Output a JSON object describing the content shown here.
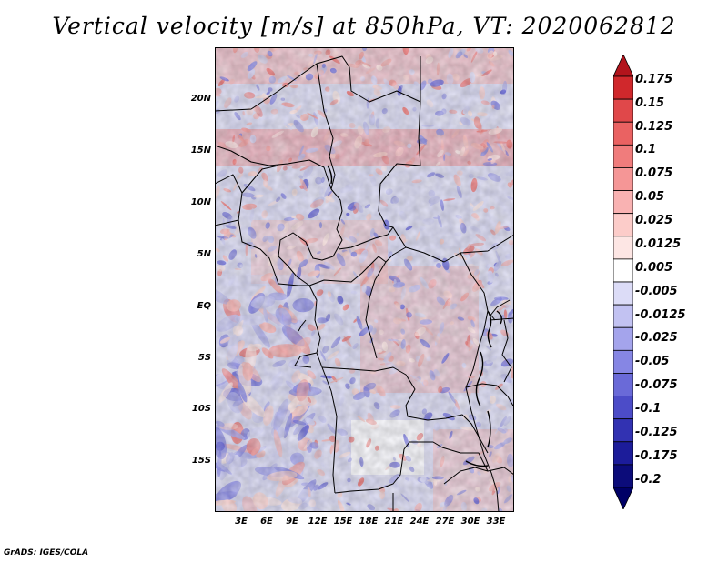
{
  "title": "Vertical velocity [m/s] at 850hPa, VT: 2020062812",
  "footer": "GrADS: IGES/COLA",
  "map": {
    "lat_labels": [
      "20N",
      "15N",
      "10N",
      "5N",
      "EQ",
      "5S",
      "10S",
      "15S"
    ],
    "lon_labels": [
      "3E",
      "6E",
      "9E",
      "12E",
      "15E",
      "18E",
      "21E",
      "24E",
      "27E",
      "30E",
      "33E"
    ]
  },
  "colorbar": {
    "labels": [
      "0.175",
      "0.15",
      "0.125",
      "0.1",
      "0.075",
      "0.05",
      "0.025",
      "0.0125",
      "0.005",
      "-0.005",
      "-0.0125",
      "-0.025",
      "-0.05",
      "-0.075",
      "-0.1",
      "-0.125",
      "-0.175",
      "-0.2"
    ],
    "colors": [
      "#b2141c",
      "#d0282c",
      "#e0484a",
      "#ea6262",
      "#f07c7c",
      "#f59696",
      "#f9b2b2",
      "#fcccc9",
      "#fde6e4",
      "#ffffff",
      "#dcdcf7",
      "#c2c2f2",
      "#a4a4ec",
      "#8686e4",
      "#6a6ad8",
      "#4c4cc8",
      "#3232b2",
      "#1c1c9a",
      "#0c0c7a",
      "#000066"
    ]
  }
}
